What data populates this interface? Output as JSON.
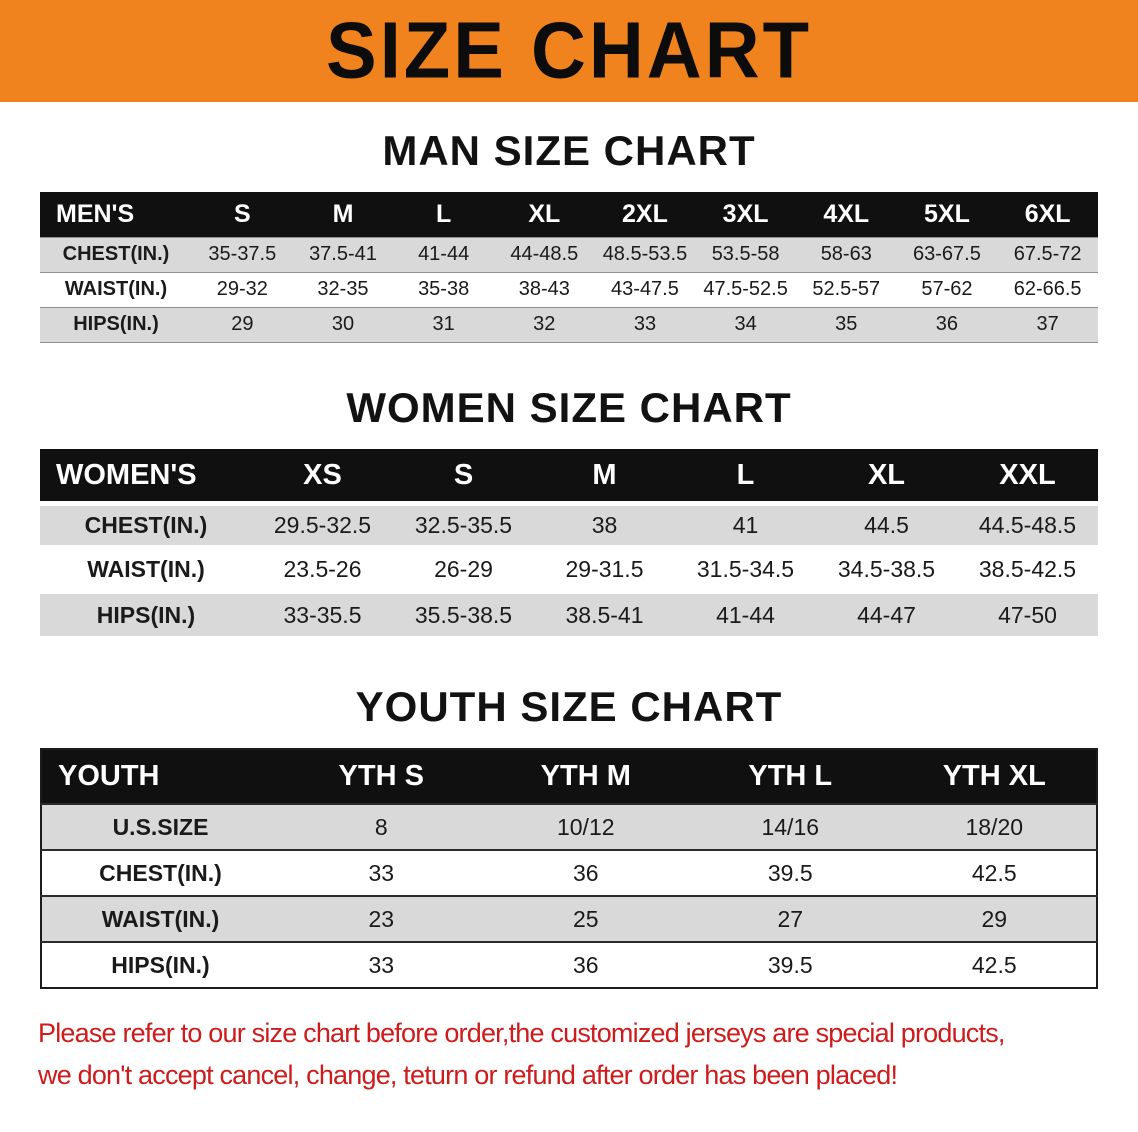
{
  "banner": {
    "title": "SIZE CHART",
    "background_color": "#f0831e",
    "text_color": "#0c0c0c"
  },
  "sections": [
    {
      "id": "men",
      "heading": "MAN SIZE CHART",
      "table": {
        "header": [
          "MEN'S",
          "S",
          "M",
          "L",
          "XL",
          "2XL",
          "3XL",
          "4XL",
          "5XL",
          "6XL"
        ],
        "rows": [
          {
            "label": "CHEST(IN.)",
            "values": [
              "35-37.5",
              "37.5-41",
              "41-44",
              "44-48.5",
              "48.5-53.5",
              "53.5-58",
              "58-63",
              "63-67.5",
              "67.5-72"
            ]
          },
          {
            "label": "WAIST(IN.)",
            "values": [
              "29-32",
              "32-35",
              "35-38",
              "38-43",
              "43-47.5",
              "47.5-52.5",
              "52.5-57",
              "57-62",
              "62-66.5"
            ]
          },
          {
            "label": "HIPS(IN.)",
            "values": [
              "29",
              "30",
              "31",
              "32",
              "33",
              "34",
              "35",
              "36",
              "37"
            ]
          }
        ]
      }
    },
    {
      "id": "women",
      "heading": "WOMEN SIZE CHART",
      "table": {
        "header": [
          "WOMEN'S",
          "XS",
          "S",
          "M",
          "L",
          "XL",
          "XXL"
        ],
        "rows": [
          {
            "label": "CHEST(IN.)",
            "values": [
              "29.5-32.5",
              "32.5-35.5",
              "38",
              "41",
              "44.5",
              "44.5-48.5"
            ]
          },
          {
            "label": "WAIST(IN.)",
            "values": [
              "23.5-26",
              "26-29",
              "29-31.5",
              "31.5-34.5",
              "34.5-38.5",
              "38.5-42.5"
            ]
          },
          {
            "label": "HIPS(IN.)",
            "values": [
              "33-35.5",
              "35.5-38.5",
              "38.5-41",
              "41-44",
              "44-47",
              "47-50"
            ]
          }
        ]
      }
    },
    {
      "id": "youth",
      "heading": "YOUTH SIZE CHART",
      "table": {
        "header": [
          "YOUTH",
          "YTH S",
          "YTH M",
          "YTH L",
          "YTH XL"
        ],
        "rows": [
          {
            "label": "U.S.SIZE",
            "values": [
              "8",
              "10/12",
              "14/16",
              "18/20"
            ]
          },
          {
            "label": "CHEST(IN.)",
            "values": [
              "33",
              "36",
              "39.5",
              "42.5"
            ]
          },
          {
            "label": "WAIST(IN.)",
            "values": [
              "23",
              "25",
              "27",
              "29"
            ]
          },
          {
            "label": "HIPS(IN.)",
            "values": [
              "33",
              "36",
              "39.5",
              "42.5"
            ]
          }
        ]
      }
    }
  ],
  "table_style": {
    "header_background": "#101010",
    "stripe_color": "#d9d9d9"
  },
  "disclaimer": {
    "line1": "Please refer to our size chart before order,the customized jerseys are special products,",
    "line2": "we don't accept cancel, change, teturn or refund after order has been placed!",
    "color": "#ce1b1b"
  }
}
